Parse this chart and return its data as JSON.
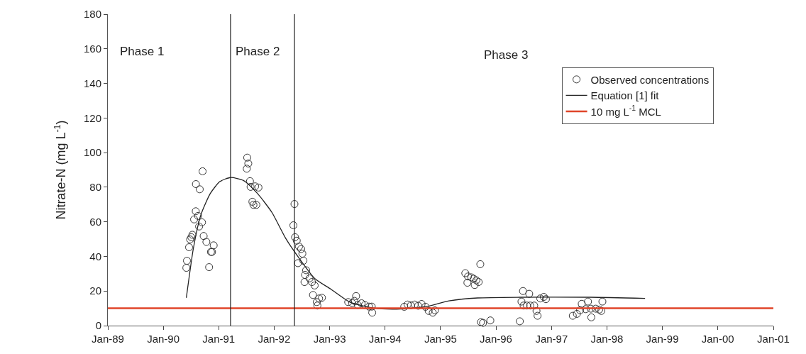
{
  "chart_data": {
    "type": "scatter",
    "ylabel": "Nitrate-N (mg L$^{-1}$)",
    "xlim": [
      "1989-01-01",
      "2001-01-01"
    ],
    "xticks": [
      {
        "value": "1989-01-01",
        "label": "Jan-89"
      },
      {
        "value": "1990-01-01",
        "label": "Jan-90"
      },
      {
        "value": "1991-01-01",
        "label": "Jan-91"
      },
      {
        "value": "1992-01-01",
        "label": "Jan-92"
      },
      {
        "value": "1993-01-01",
        "label": "Jan-93"
      },
      {
        "value": "1994-01-01",
        "label": "Jan-94"
      },
      {
        "value": "1995-01-01",
        "label": "Jan-95"
      },
      {
        "value": "1996-01-01",
        "label": "Jan-96"
      },
      {
        "value": "1997-01-01",
        "label": "Jan-97"
      },
      {
        "value": "1998-01-01",
        "label": "Jan-98"
      },
      {
        "value": "1999-01-01",
        "label": "Jan-99"
      },
      {
        "value": "2000-01-01",
        "label": "Jan-00"
      },
      {
        "value": "2001-01-01",
        "label": "Jan-01"
      }
    ],
    "ylim": [
      0,
      180
    ],
    "yticks": [
      0,
      20,
      40,
      60,
      80,
      100,
      120,
      140,
      160,
      180
    ],
    "legend": "top right",
    "series": [
      {
        "name": "Observed concentrations",
        "marker": "circle",
        "color": "#333333",
        "x": [
          "1990-06-02",
          "1990-06-06",
          "1990-06-20",
          "1990-06-27",
          "1990-07-05",
          "1990-07-12",
          "1990-07-23",
          "1990-08-03",
          "1990-08-04",
          "1990-08-18",
          "1990-08-25",
          "1990-08-29",
          "1990-09-13",
          "1990-09-17",
          "1990-09-24",
          "1990-10-12",
          "1990-10-30",
          "1990-11-11",
          "1990-11-18",
          "1990-11-29",
          "1991-07-05",
          "1991-07-08",
          "1991-07-15",
          "1991-07-26",
          "1991-07-30",
          "1991-08-11",
          "1991-08-18",
          "1991-08-29",
          "1991-09-06",
          "1991-09-20",
          "1992-05-07",
          "1992-05-14",
          "1992-05-18",
          "1992-05-29",
          "1992-06-06",
          "1992-06-13",
          "1992-06-27",
          "1992-07-05",
          "1992-07-12",
          "1992-07-19",
          "1992-07-23",
          "1992-07-30",
          "1992-08-21",
          "1992-09-06",
          "1992-09-13",
          "1992-09-24",
          "1992-10-08",
          "1992-10-12",
          "1992-10-23",
          "1992-11-11",
          "1993-05-03",
          "1993-05-29",
          "1993-06-13",
          "1993-06-24",
          "1993-07-05",
          "1993-07-30",
          "1993-08-21",
          "1993-09-17",
          "1993-10-05",
          "1993-10-08",
          "1994-05-07",
          "1994-05-29",
          "1994-06-20",
          "1994-07-15",
          "1994-08-07",
          "1994-08-29",
          "1994-09-24",
          "1994-10-15",
          "1994-11-11",
          "1994-11-25",
          "1995-06-13",
          "1995-06-27",
          "1995-07-01",
          "1995-07-23",
          "1995-08-07",
          "1995-08-14",
          "1995-08-25",
          "1995-09-09",
          "1995-09-20",
          "1995-09-24",
          "1995-10-08",
          "1995-11-25",
          "1996-06-06",
          "1996-06-17",
          "1996-06-27",
          "1996-07-01",
          "1996-07-23",
          "1996-08-07",
          "1996-08-14",
          "1996-09-09",
          "1996-09-24",
          "1996-10-01",
          "1996-10-19",
          "1996-11-11",
          "1996-11-25",
          "1997-05-21",
          "1997-06-17",
          "1997-07-08",
          "1997-07-19",
          "1997-08-14",
          "1997-08-29",
          "1997-09-17",
          "1997-09-20",
          "1997-10-19",
          "1997-11-11",
          "1997-11-25",
          "1997-12-02"
        ],
        "values": [
          33.4,
          37.5,
          45.3,
          49.8,
          51.1,
          52.5,
          61.4,
          66.1,
          81.8,
          63.4,
          57.3,
          78.8,
          59.7,
          89.2,
          51.8,
          48.4,
          33.8,
          42.6,
          42.6,
          46.4,
          90.7,
          97.1,
          93.7,
          83.5,
          80.2,
          71.6,
          69.8,
          80.5,
          69.8,
          79.8,
          58.0,
          70.3,
          51.1,
          49.1,
          36.1,
          45.7,
          44.3,
          41.6,
          37.5,
          25.2,
          29.3,
          32.0,
          27.3,
          25.2,
          17.7,
          23.2,
          13.6,
          11.6,
          15.7,
          16.1,
          13.6,
          13.0,
          14.3,
          17.1,
          11.9,
          12.9,
          11.9,
          11.0,
          11.0,
          7.5,
          10.9,
          12.2,
          11.7,
          12.2,
          11.5,
          12.5,
          10.9,
          8.5,
          7.5,
          8.8,
          30.3,
          24.8,
          28.4,
          27.9,
          27.1,
          23.5,
          26.2,
          25.2,
          35.5,
          2.0,
          1.6,
          3.0,
          2.5,
          13.9,
          20.0,
          11.6,
          11.6,
          18.4,
          11.6,
          11.6,
          8.5,
          5.7,
          15.7,
          16.6,
          15.3,
          5.7,
          6.8,
          8.9,
          12.6,
          9.5,
          13.9,
          9.8,
          4.8,
          9.8,
          9.3,
          8.5,
          13.9
        ]
      },
      {
        "name": "Equation [1] fit",
        "type": "line",
        "marker": "none",
        "line_style": "solid",
        "color": "#222222",
        "x": [
          "1990-06-02",
          "1990-07-19",
          "1990-09-06",
          "1990-11-07",
          "1991-01-08",
          "1991-03-20",
          "1991-06-13",
          "1991-09-13",
          "1991-12-17",
          "1992-03-17",
          "1992-06-20",
          "1992-09-24",
          "1993-01-08",
          "1993-05-14",
          "1993-10-15",
          "1994-03-02",
          "1994-09-24",
          "1995-02-25",
          "1995-09-02",
          "1996-06-06",
          "1997-09-17",
          "1998-09-09"
        ],
        "values": [
          16.1,
          45.0,
          64.1,
          76.4,
          83.2,
          85.6,
          83.9,
          76.4,
          65.5,
          50.5,
          38.2,
          27.3,
          21.1,
          13.6,
          10.2,
          9.5,
          10.9,
          14.3,
          16.0,
          16.4,
          16.4,
          15.7
        ]
      }
    ],
    "ref_lines": [
      {
        "axis": "y",
        "value": 10,
        "label": "10 mg L$^{-1}$ MCL",
        "color": "#e0452a",
        "line_style": "solid"
      },
      {
        "axis": "x",
        "value": "1991-03-20",
        "color": "#222222",
        "line_style": "solid"
      },
      {
        "axis": "x",
        "value": "1992-05-14",
        "color": "#222222",
        "line_style": "solid"
      }
    ],
    "annotations": [
      "Phase 1",
      "Phase 2",
      "Phase 3"
    ]
  }
}
